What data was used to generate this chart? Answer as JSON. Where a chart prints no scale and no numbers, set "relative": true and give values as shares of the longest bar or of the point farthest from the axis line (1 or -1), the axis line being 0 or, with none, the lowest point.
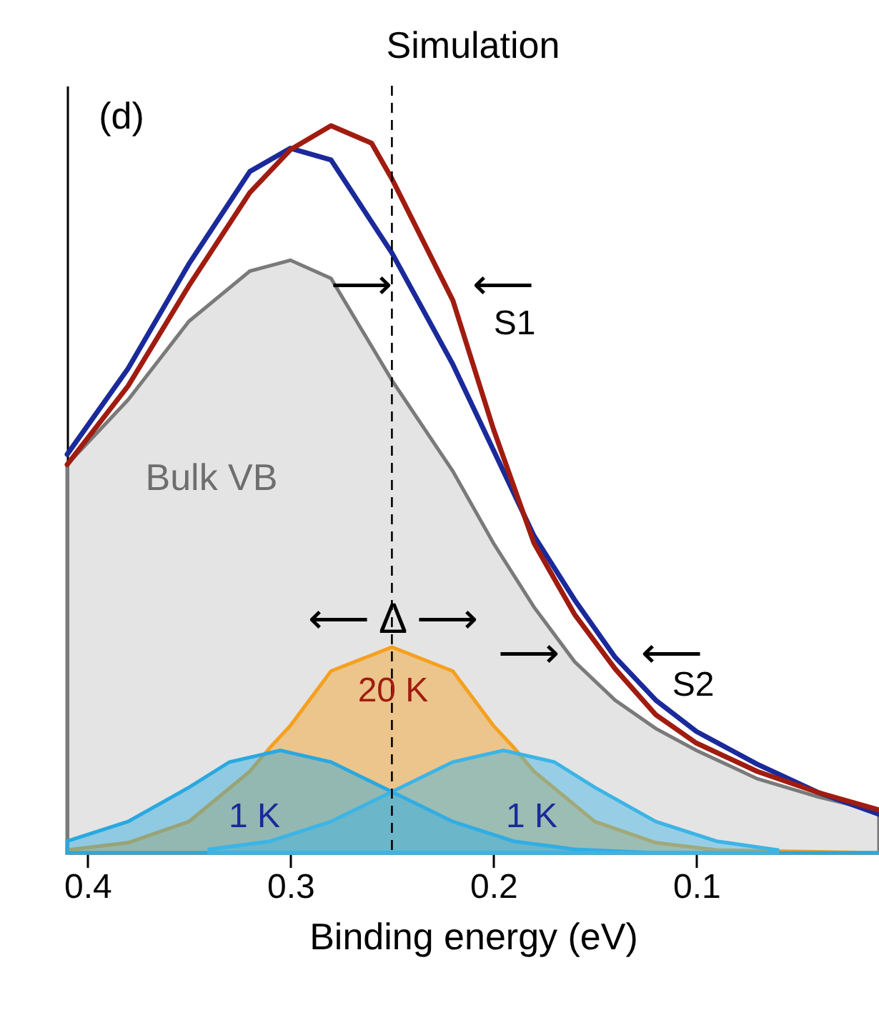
{
  "chart_data": {
    "type": "line",
    "title": "Simulation",
    "xlabel": "Binding energy (eV)",
    "relative": true,
    "xlim": [
      0.41,
      0.01
    ],
    "xticks": [
      0.4,
      0.3,
      0.2,
      0.1
    ],
    "tick_labels": "x",
    "grid": false,
    "series": [
      {
        "type": "area",
        "color": "#7a7a7a",
        "x": [
          0.41,
          0.38,
          0.35,
          0.32,
          0.3,
          0.28,
          0.25,
          0.22,
          0.2,
          0.18,
          0.16,
          0.14,
          0.12,
          0.1,
          0.07,
          0.04,
          0.01
        ],
        "values": [
          0.534,
          0.623,
          0.731,
          0.8,
          0.815,
          0.79,
          0.65,
          0.525,
          0.426,
          0.338,
          0.263,
          0.21,
          0.171,
          0.141,
          0.102,
          0.077,
          0.057
        ]
      },
      {
        "type": "area",
        "color": "#f5a020",
        "x": [
          0.41,
          0.38,
          0.35,
          0.32,
          0.31,
          0.3,
          0.28,
          0.25,
          0.22,
          0.2,
          0.19,
          0.18,
          0.15,
          0.12,
          0.09,
          0.01
        ],
        "values": [
          0.004,
          0.014,
          0.043,
          0.112,
          0.145,
          0.175,
          0.25,
          0.283,
          0.25,
          0.175,
          0.145,
          0.112,
          0.043,
          0.014,
          0.004,
          0
        ]
      },
      {
        "type": "area",
        "color": "#29a8e0",
        "x": [
          0.41,
          0.38,
          0.35,
          0.33,
          0.305,
          0.28,
          0.25,
          0.22,
          0.19,
          0.16,
          0.12,
          0.01
        ],
        "values": [
          0.016,
          0.043,
          0.09,
          0.125,
          0.141,
          0.125,
          0.084,
          0.043,
          0.016,
          0.005,
          0,
          0
        ]
      },
      {
        "type": "area",
        "color": "#3cb4e6",
        "x": [
          0.34,
          0.31,
          0.28,
          0.25,
          0.22,
          0.195,
          0.17,
          0.15,
          0.12,
          0.09,
          0.06
        ],
        "values": [
          0.005,
          0.016,
          0.043,
          0.084,
          0.125,
          0.141,
          0.125,
          0.09,
          0.043,
          0.016,
          0.004
        ]
      },
      {
        "color": "#1a2a9a",
        "x": [
          0.41,
          0.38,
          0.35,
          0.32,
          0.3,
          0.28,
          0.25,
          0.22,
          0.2,
          0.18,
          0.16,
          0.14,
          0.12,
          0.1,
          0.07,
          0.04,
          0.01
        ],
        "values": [
          0.548,
          0.666,
          0.81,
          0.937,
          0.969,
          0.953,
          0.825,
          0.672,
          0.554,
          0.436,
          0.348,
          0.269,
          0.21,
          0.167,
          0.122,
          0.083,
          0.053
        ]
      },
      {
        "color": "#a01c10",
        "x": [
          0.41,
          0.38,
          0.35,
          0.32,
          0.3,
          0.28,
          0.26,
          0.25,
          0.22,
          0.2,
          0.18,
          0.16,
          0.14,
          0.12,
          0.1,
          0.07,
          0.04,
          0.01
        ],
        "values": [
          0.534,
          0.642,
          0.78,
          0.908,
          0.967,
          1.0,
          0.976,
          0.927,
          0.76,
          0.583,
          0.426,
          0.328,
          0.253,
          0.19,
          0.151,
          0.112,
          0.083,
          0.059
        ]
      }
    ],
    "ref_lines": [
      {
        "axis": "x",
        "value": 0.25,
        "color": "#000000",
        "line_style": "dashed"
      }
    ],
    "annotations": [
      "(d)",
      "Bulk VB",
      "20 K",
      "1 K",
      "1 K",
      "⟵  Δ  ⟶",
      "⟶",
      "⟵",
      "S1",
      "⟶",
      "⟵",
      "S2"
    ]
  }
}
